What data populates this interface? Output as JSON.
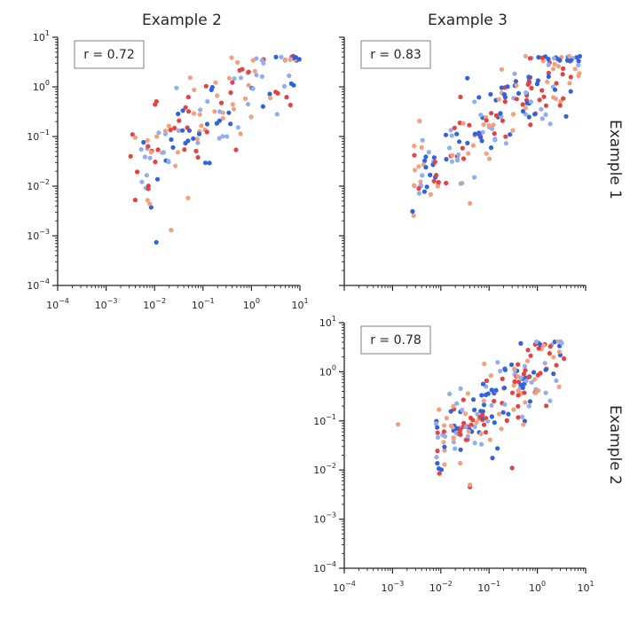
{
  "figure": {
    "column_titles": [
      "Example 2",
      "Example 3"
    ],
    "row_titles": [
      "Example 1",
      "Example 2"
    ]
  },
  "tick_base": "10",
  "tick_exponents": [
    "−4",
    "−3",
    "−2",
    "−1",
    "0",
    "1"
  ],
  "colors": [
    "#2f63e0",
    "#91aef2",
    "#e64242",
    "#f5a07d"
  ],
  "chart_data": [
    {
      "type": "scatter",
      "panel": "Example 1 vs Example 2",
      "xscale": "log",
      "yscale": "log",
      "xlim": [
        0.0001,
        10
      ],
      "ylim": [
        0.0001,
        10
      ],
      "annotation": "r = 0.72",
      "x_tick_labels_shown": true,
      "y_tick_labels_shown": true,
      "seed": 72,
      "n": 150,
      "x_range_log10": [
        -2.4,
        1.0
      ],
      "spread": 0.5,
      "outliers": [
        [
          0.022,
          0.0013
        ],
        [
          0.0035,
          0.11
        ],
        [
          0.004,
          0.095
        ],
        [
          0.0032,
          0.04
        ]
      ]
    },
    {
      "type": "scatter",
      "panel": "Example 1 vs Example 3",
      "xscale": "log",
      "yscale": "log",
      "xlim": [
        0.0001,
        10
      ],
      "ylim": [
        0.0001,
        10
      ],
      "annotation": "r = 0.83",
      "x_tick_labels_shown": false,
      "y_tick_labels_shown": false,
      "seed": 83,
      "n": 200,
      "x_range_log10": [
        -2.6,
        0.9
      ],
      "spread": 0.4,
      "outliers": [
        [
          0.04,
          0.0045
        ],
        [
          0.0035,
          0.009
        ],
        [
          0.004,
          0.06
        ],
        [
          0.009,
          0.012
        ]
      ]
    },
    {
      "type": "scatter",
      "panel": "Example 2 vs Example 3",
      "xscale": "log",
      "yscale": "log",
      "xlim": [
        0.0001,
        10
      ],
      "ylim": [
        0.0001,
        10
      ],
      "annotation": "r = 0.78",
      "x_tick_labels_shown": true,
      "y_tick_labels_shown": true,
      "seed": 78,
      "n": 200,
      "x_range_log10": [
        -2.1,
        0.6
      ],
      "spread": 0.42,
      "outliers": [
        [
          0.0013,
          0.085
        ],
        [
          0.04,
          0.0045
        ],
        [
          0.04,
          0.005
        ],
        [
          0.3,
          0.011
        ]
      ]
    }
  ]
}
